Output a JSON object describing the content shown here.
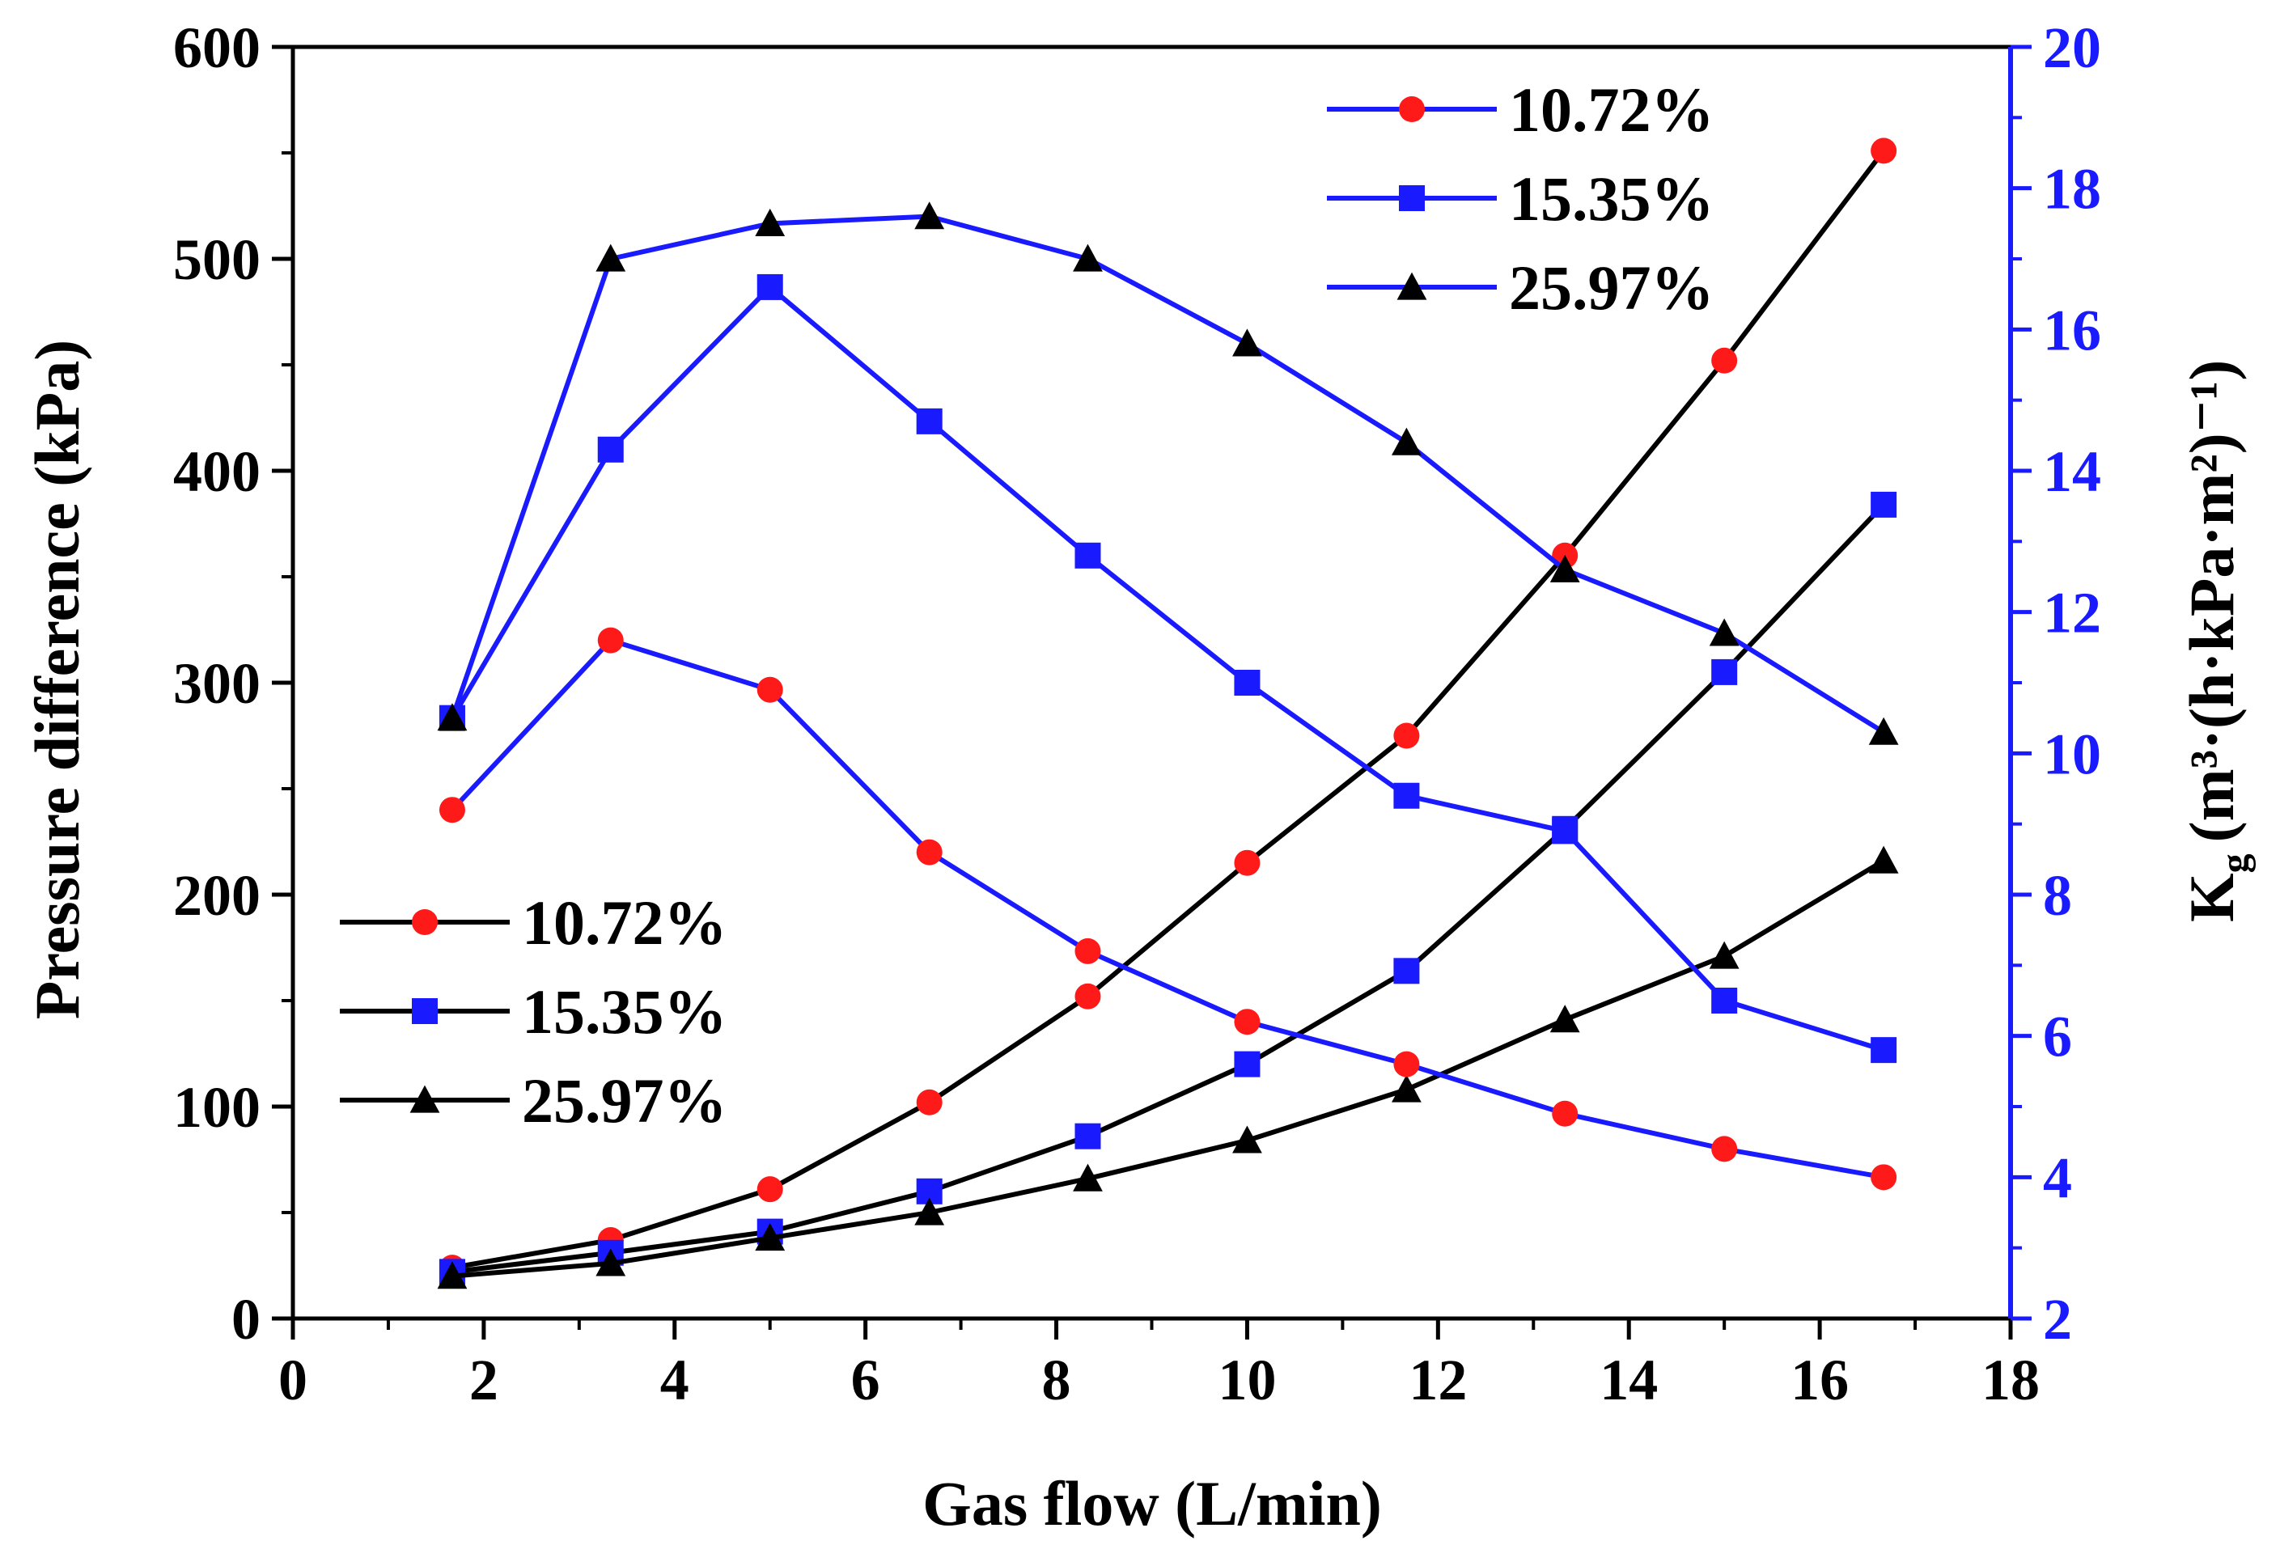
{
  "chart_data": {
    "type": "line",
    "title": "",
    "xlabel": "Gas flow (L/min)",
    "ylabel_left": "Pressure difference (kPa)",
    "ylabel_right": "K",
    "ylabel_right_subscript": "g",
    "ylabel_right_units": "(m³·(h·kPa·m²)⁻¹)",
    "xlim": [
      0,
      18
    ],
    "ylim_left": [
      0,
      600
    ],
    "ylim_right": [
      2,
      20
    ],
    "x_ticks": [
      "0",
      "2",
      "4",
      "6",
      "8",
      "10",
      "12",
      "14",
      "16",
      "18"
    ],
    "y_left_ticks": [
      "0",
      "100",
      "200",
      "300",
      "400",
      "500",
      "600"
    ],
    "y_right_ticks": [
      "2",
      "4",
      "6",
      "8",
      "10",
      "12",
      "14",
      "16",
      "18",
      "20"
    ],
    "grid": false,
    "x": [
      1.67,
      3.33,
      5.0,
      6.67,
      8.33,
      10.0,
      11.67,
      13.33,
      15.0,
      16.67
    ],
    "pressure_series": [
      {
        "name": "10.72%",
        "axis": "left",
        "line_color": "#000000",
        "marker": "circle",
        "marker_color": "#ff1a1a",
        "values": [
          24,
          37,
          61,
          102,
          152,
          215,
          275,
          360,
          452,
          551
        ]
      },
      {
        "name": "15.35%",
        "axis": "left",
        "line_color": "#000000",
        "marker": "square",
        "marker_color": "#1a1aff",
        "values": [
          22,
          31,
          41,
          60,
          86,
          120,
          164,
          231,
          305,
          384
        ]
      },
      {
        "name": "25.97%",
        "axis": "left",
        "line_color": "#000000",
        "marker": "triangle",
        "marker_color": "#000000",
        "values": [
          20,
          26,
          38,
          50,
          66,
          84,
          108,
          141,
          171,
          216
        ]
      }
    ],
    "kg_series": [
      {
        "name": "10.72%",
        "axis": "right",
        "line_color": "#1a1aff",
        "marker": "circle",
        "marker_color": "#ff1a1a",
        "values": [
          9.2,
          11.6,
          10.9,
          8.6,
          7.2,
          6.2,
          5.6,
          4.9,
          4.4,
          4.0
        ]
      },
      {
        "name": "15.35%",
        "axis": "right",
        "line_color": "#1a1aff",
        "marker": "square",
        "marker_color": "#1a1aff",
        "values": [
          10.5,
          14.3,
          16.6,
          14.7,
          12.8,
          11.0,
          9.4,
          8.9,
          6.5,
          5.8
        ]
      },
      {
        "name": "25.97%",
        "axis": "right",
        "line_color": "#1a1aff",
        "marker": "triangle",
        "marker_color": "#000000",
        "values": [
          10.5,
          17.0,
          17.5,
          17.6,
          17.0,
          15.8,
          14.4,
          12.6,
          11.7,
          10.3
        ]
      }
    ],
    "legend_left": {
      "position": "lower-left",
      "labels": [
        "10.72%",
        "15.35%",
        "25.97%"
      ]
    },
    "legend_right": {
      "position": "top-right",
      "labels": [
        "10.72%",
        "15.35%",
        "25.97%"
      ]
    },
    "colors": {
      "pressure_line": "#000000",
      "kg_line": "#1a1aff",
      "right_axis": "#1a1aff",
      "circle_marker": "#ff1a1a",
      "square_marker": "#1a1aff",
      "triangle_marker": "#000000"
    }
  }
}
